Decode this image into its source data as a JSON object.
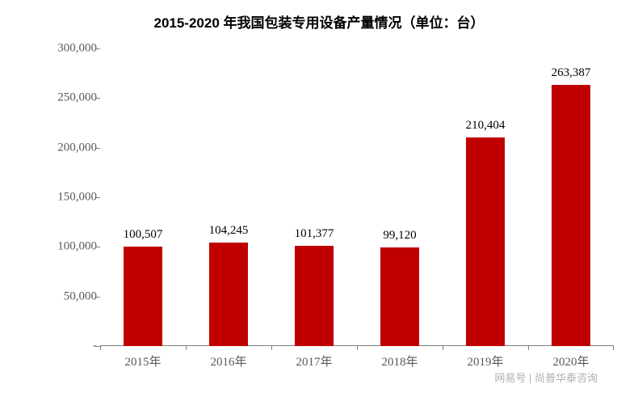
{
  "title": "2015-2020 年我国包装专用设备产量情况（单位：台）",
  "title_fontsize": 17,
  "chart": {
    "type": "bar",
    "categories": [
      "2015年",
      "2016年",
      "2017年",
      "2018年",
      "2019年",
      "2020年"
    ],
    "values": [
      100507,
      104245,
      101377,
      99120,
      210404,
      263387
    ],
    "value_labels": [
      "100,507",
      "104,245",
      "101,377",
      "99,120",
      "210,404",
      "263,387"
    ],
    "bar_color": "#c00000",
    "ylim": [
      0,
      300000
    ],
    "yticks": [
      0,
      50000,
      100000,
      150000,
      200000,
      250000,
      300000
    ],
    "ytick_labels": [
      "-",
      "50,000",
      "100,000",
      "150,000",
      "200,000",
      "250,000",
      "300,000"
    ],
    "ytick_fontsize": 15,
    "xlabel_fontsize": 15,
    "barlabel_fontsize": 15,
    "bar_width_ratio": 0.46,
    "background_color": "#ffffff",
    "axis_color": "#808080",
    "tick_label_color": "#595959"
  },
  "watermark": {
    "text": "网易号 | 尚普华泰咨询",
    "fontsize": 13,
    "color": "#b0b0b0"
  }
}
